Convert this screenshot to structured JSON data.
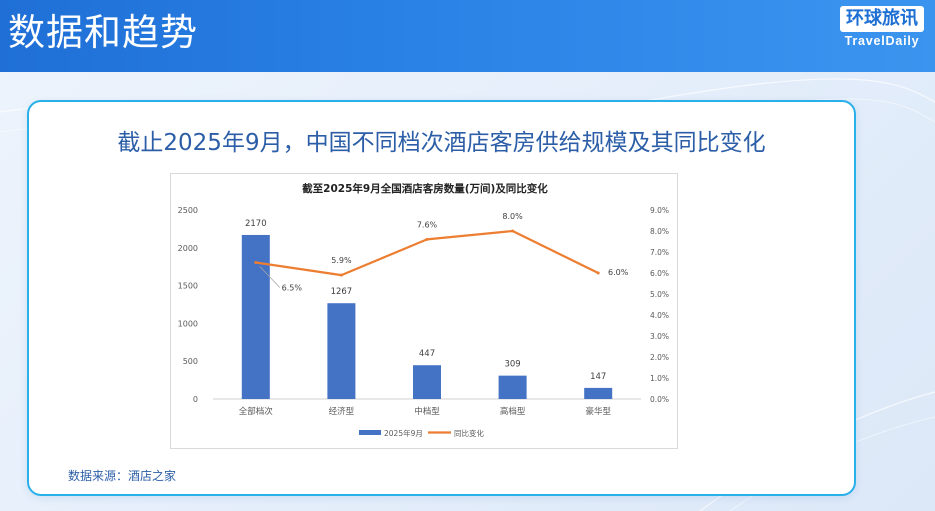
{
  "header": {
    "title": "数据和趋势",
    "brand_cn": "环球旅讯",
    "brand_en": "TravelDaily"
  },
  "slide": {
    "title": "截止2025年9月，中国不同档次酒店客房供给规模及其同比变化",
    "source": "数据来源：酒店之家"
  },
  "colors": {
    "bar": "#4472c4",
    "line": "#ed7d31",
    "accent": "#2ab0e8",
    "title": "#2c5ea8"
  },
  "chart_data": {
    "type": "bar",
    "title": "截至2025年9月全国酒店客房数量(万间)及同比变化",
    "categories": [
      "全部档次",
      "经济型",
      "中档型",
      "高档型",
      "豪华型"
    ],
    "series": [
      {
        "name": "2025年9月",
        "type": "bar",
        "axis": "left",
        "values": [
          2170,
          1267,
          447,
          309,
          147
        ],
        "labels": [
          "2170",
          "1267",
          "447",
          "309",
          "147"
        ]
      },
      {
        "name": "同比变化",
        "type": "line",
        "axis": "right",
        "values": [
          6.5,
          5.9,
          7.6,
          8.0,
          6.0
        ],
        "labels": [
          "6.5%",
          "5.9%",
          "7.6%",
          "8.0%",
          "6.0%"
        ]
      }
    ],
    "y_left": {
      "min": 0,
      "max": 2500,
      "ticks": [
        0,
        500,
        1000,
        1500,
        2000,
        2500
      ],
      "tick_labels": [
        "0",
        "500",
        "1000",
        "1500",
        "2000",
        "2500"
      ]
    },
    "y_right": {
      "min": 0,
      "max": 9,
      "ticks": [
        0,
        1,
        2,
        3,
        4,
        5,
        6,
        7,
        8,
        9
      ],
      "tick_labels": [
        "0.0%",
        "1.0%",
        "2.0%",
        "3.0%",
        "4.0%",
        "5.0%",
        "6.0%",
        "7.0%",
        "8.0%",
        "9.0%"
      ]
    },
    "grid": false,
    "legend_position": "bottom"
  }
}
